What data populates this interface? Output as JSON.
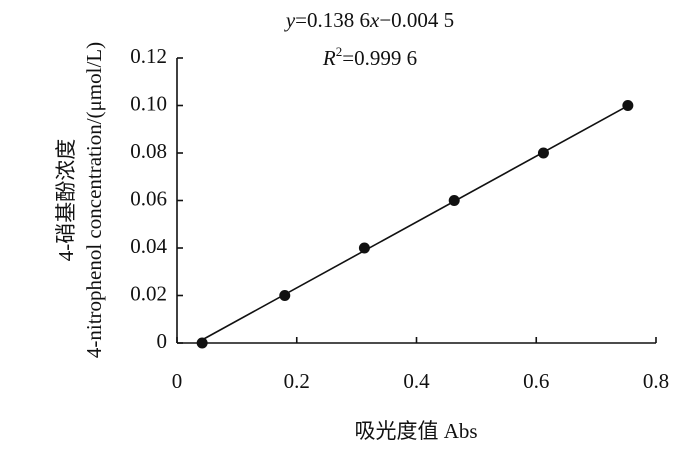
{
  "chart_data": {
    "type": "scatter",
    "equation": [
      "y",
      "=0.138 6",
      "x",
      "−0.004 5"
    ],
    "r2": [
      "R",
      "2",
      "=0.999 6"
    ],
    "xlabel": "吸光度值  Abs",
    "ylabel": [
      "4-硝基酚浓度",
      "4-nitrophenol concentration/(μmol/L)"
    ],
    "x": [
      0.042,
      0.18,
      0.313,
      0.463,
      0.612,
      0.753
    ],
    "values": [
      0,
      0.02,
      0.04,
      0.06,
      0.08,
      0.1
    ],
    "color": "#111111",
    "trendline": {
      "slope": 0.1386,
      "intercept": -0.0045
    },
    "xlim": [
      0,
      0.8
    ],
    "xticks": [
      0,
      0.2,
      0.4,
      0.6,
      0.8
    ],
    "ylim": [
      0,
      0.12
    ],
    "yticks": [
      0,
      0.02,
      0.04,
      0.06,
      {
        "value": 0.08,
        "label": "0.08"
      },
      {
        "value": 0.1,
        "label": "0.10"
      },
      0.12
    ],
    "grid": false
  }
}
